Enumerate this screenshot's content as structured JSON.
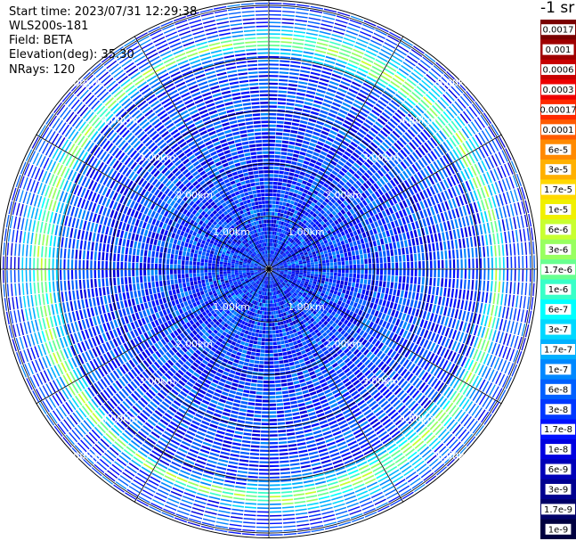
{
  "info": {
    "start_time": "Start time: 2023/07/31 12:29:38",
    "device": "WLS200s-181",
    "field": "Field: BETA",
    "elevation": "Elevation(deg): 35.30",
    "nrays": "NRays: 120"
  },
  "colorbar": {
    "unit": "-1 sr",
    "labels": [
      "0.0017",
      "0.001",
      "0.0006",
      "0.0003",
      "0.00017",
      "0.0001",
      "6e-5",
      "3e-5",
      "1.7e-5",
      "1e-5",
      "6e-6",
      "3e-6",
      "1.7e-6",
      "1e-6",
      "6e-7",
      "3e-7",
      "1.7e-7",
      "1e-7",
      "6e-8",
      "3e-8",
      "1.7e-8",
      "1e-8",
      "6e-9",
      "3e-9",
      "1.7e-9",
      "1e-9"
    ],
    "colors": [
      "#7a0000",
      "#a00000",
      "#c80000",
      "#ee0000",
      "#ff2a00",
      "#ff5a00",
      "#ff8a00",
      "#ffb000",
      "#ffd800",
      "#f0f000",
      "#c8ff30",
      "#98ff60",
      "#68ff90",
      "#38ffc8",
      "#00ffff",
      "#00d8ff",
      "#00b0ff",
      "#0088ff",
      "#0060ff",
      "#0038ff",
      "#0010ff",
      "#0000e0",
      "#0000b8",
      "#000090",
      "#000068",
      "#000040"
    ]
  },
  "chart_data": {
    "type": "heatmap",
    "projection": "polar (PPI scan)",
    "n_rays": 120,
    "elevation_deg": 35.3,
    "field": "BETA",
    "range_rings": [
      "1.00km",
      "2.00km",
      "3.00km",
      "4.00km",
      "5.00km"
    ],
    "range_ring_values_km": [
      1,
      2,
      3,
      4,
      5
    ],
    "max_range_km": 5.1,
    "spoke_count": 12,
    "color_scale": "log",
    "value_range": [
      1e-09,
      0.0017
    ],
    "background_level": "3e-8",
    "feature": {
      "description": "enhanced backscatter ring",
      "range_km": 4.35,
      "value": "3e-6"
    }
  }
}
